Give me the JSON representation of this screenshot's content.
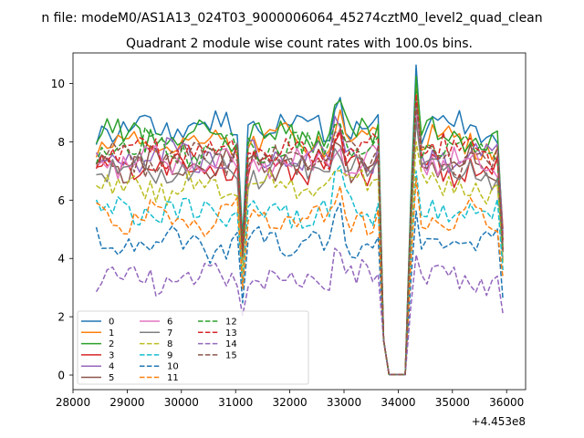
{
  "figure": {
    "suptitle": "n file: modeM0/AS1A13_024T03_9000006064_45274cztM0_level2_quad_clean",
    "offset_label": "+4.453e8"
  },
  "chart_data": {
    "type": "line",
    "title": "Quadrant 2 module wise count rates with 100.0s bins.",
    "xlabel": "",
    "ylabel": "",
    "xlim": [
      28000,
      36350
    ],
    "ylim": [
      -0.5,
      11.05
    ],
    "x_offset": 445300000,
    "xticks": [
      28000,
      29000,
      30000,
      31000,
      32000,
      33000,
      34000,
      35000,
      36000
    ],
    "xtick_labels": [
      "28000",
      "29000",
      "30000",
      "31000",
      "32000",
      "33000",
      "34000",
      "35000",
      "36000"
    ],
    "yticks": [
      0,
      2,
      4,
      6,
      8,
      10
    ],
    "ytick_labels": [
      "0",
      "2",
      "4",
      "6",
      "8",
      "10"
    ],
    "grid": false,
    "legend": {
      "placement": "lower-left",
      "columns": 4
    },
    "series": [
      {
        "name": "0",
        "color": "#1f77b4",
        "style": "solid",
        "base": 8.5
      },
      {
        "name": "1",
        "color": "#ff7f0e",
        "style": "solid",
        "base": 8.0
      },
      {
        "name": "2",
        "color": "#2ca02c",
        "style": "solid",
        "base": 8.2
      },
      {
        "name": "3",
        "color": "#d62728",
        "style": "solid",
        "base": 7.1
      },
      {
        "name": "4",
        "color": "#9467bd",
        "style": "solid",
        "base": 7.5
      },
      {
        "name": "5",
        "color": "#8c564b",
        "style": "solid",
        "base": 7.2
      },
      {
        "name": "6",
        "color": "#e377c2",
        "style": "solid",
        "base": 7.3
      },
      {
        "name": "7",
        "color": "#7f7f7f",
        "style": "solid",
        "base": 7.0
      },
      {
        "name": "8",
        "color": "#bcbd22",
        "style": "dashed",
        "base": 6.4
      },
      {
        "name": "9",
        "color": "#17becf",
        "style": "dashed",
        "base": 5.6
      },
      {
        "name": "10",
        "color": "#1f77b4",
        "style": "dashed",
        "base": 4.5
      },
      {
        "name": "11",
        "color": "#ff7f0e",
        "style": "dashed",
        "base": 5.4
      },
      {
        "name": "12",
        "color": "#2ca02c",
        "style": "dashed",
        "base": 7.8
      },
      {
        "name": "13",
        "color": "#d62728",
        "style": "dashed",
        "base": 7.7
      },
      {
        "name": "14",
        "color": "#9467bd",
        "style": "dashed",
        "base": 3.3
      },
      {
        "name": "15",
        "color": "#8c564b",
        "style": "dashed",
        "base": 7.4
      }
    ],
    "x_start": 28430,
    "x_step": 100,
    "n_points": 76
  }
}
